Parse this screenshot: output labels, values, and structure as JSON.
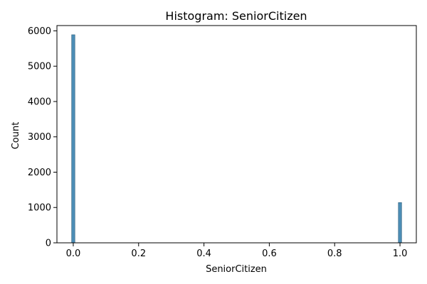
{
  "chart_data": {
    "type": "histogram",
    "title": "Histogram: SeniorCitizen",
    "xlabel": "SeniorCitizen",
    "ylabel": "Count",
    "xlim": [
      -0.05,
      1.05
    ],
    "ylim": [
      0,
      6150
    ],
    "xticks": [
      0.0,
      0.2,
      0.4,
      0.6,
      0.8,
      1.0
    ],
    "xtick_labels": [
      "0.0",
      "0.2",
      "0.4",
      "0.6",
      "0.8",
      "1.0"
    ],
    "yticks": [
      0,
      1000,
      2000,
      3000,
      4000,
      5000,
      6000
    ],
    "ytick_labels": [
      "0",
      "1000",
      "2000",
      "3000",
      "4000",
      "5000",
      "6000"
    ],
    "bin_width": 0.01,
    "bars": [
      {
        "x": 0.0,
        "value": 5890
      },
      {
        "x": 1.0,
        "value": 1140
      }
    ],
    "bar_color": "#4c8db5",
    "bar_edge_color": "#2f5f7d",
    "grid": false
  }
}
